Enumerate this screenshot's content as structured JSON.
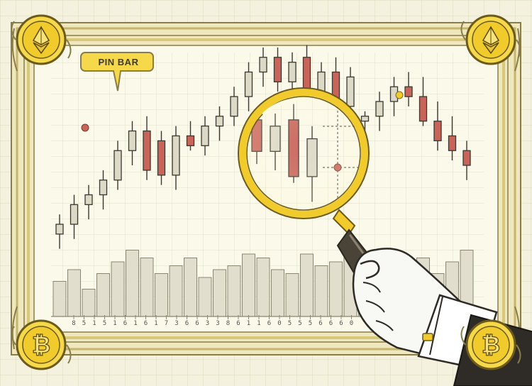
{
  "callout": {
    "label": "PIN BAR"
  },
  "coins": [
    {
      "id": "top-left",
      "symbol": "ethereum"
    },
    {
      "id": "top-right",
      "symbol": "ethereum"
    },
    {
      "id": "bottom-left",
      "symbol": "bitcoin",
      "glyph": "₿"
    },
    {
      "id": "bottom-right",
      "symbol": "bitcoin",
      "glyph": "₿"
    }
  ],
  "colors": {
    "bull": "#dcd9c6",
    "bear": "#c9645a",
    "gold": "#f1cb2c",
    "frame": "#e9e2b8",
    "paper": "#fbf9e9",
    "volume": "#e1dece"
  },
  "chart_data": {
    "type": "candlestick",
    "grid": true,
    "ylim": [
      0,
      100
    ],
    "x_tick_labels": [
      "8",
      "5",
      "1",
      "5",
      "1",
      "6",
      "1",
      "6",
      "1",
      "7",
      "3",
      "6",
      "6",
      "3",
      "3",
      "8",
      "6",
      "1",
      "1",
      "6",
      "0",
      "5",
      "5",
      "5",
      "6",
      "6",
      "6",
      "0"
    ],
    "candles": [
      {
        "o": 22,
        "h": 30,
        "l": 16,
        "c": 26
      },
      {
        "o": 26,
        "h": 38,
        "l": 20,
        "c": 34
      },
      {
        "o": 34,
        "h": 42,
        "l": 28,
        "c": 38
      },
      {
        "o": 38,
        "h": 48,
        "l": 32,
        "c": 44
      },
      {
        "o": 44,
        "h": 60,
        "l": 40,
        "c": 56
      },
      {
        "o": 56,
        "h": 68,
        "l": 50,
        "c": 64
      },
      {
        "o": 64,
        "h": 70,
        "l": 44,
        "c": 48
      },
      {
        "o": 60,
        "h": 64,
        "l": 42,
        "c": 46
      },
      {
        "o": 46,
        "h": 66,
        "l": 40,
        "c": 62
      },
      {
        "o": 62,
        "h": 68,
        "l": 56,
        "c": 58
      },
      {
        "o": 58,
        "h": 70,
        "l": 54,
        "c": 66
      },
      {
        "o": 66,
        "h": 74,
        "l": 60,
        "c": 70
      },
      {
        "o": 70,
        "h": 82,
        "l": 66,
        "c": 78
      },
      {
        "o": 78,
        "h": 92,
        "l": 72,
        "c": 88
      },
      {
        "o": 88,
        "h": 98,
        "l": 82,
        "c": 94
      },
      {
        "o": 94,
        "h": 98,
        "l": 80,
        "c": 84
      },
      {
        "o": 84,
        "h": 96,
        "l": 78,
        "c": 92
      },
      {
        "o": 94,
        "h": 99,
        "l": 74,
        "c": 76
      },
      {
        "o": 76,
        "h": 92,
        "l": 68,
        "c": 88
      },
      {
        "o": 88,
        "h": 94,
        "l": 72,
        "c": 74
      },
      {
        "o": 74,
        "h": 90,
        "l": 66,
        "c": 86
      },
      {
        "o": 68,
        "h": 72,
        "l": 64,
        "c": 70
      },
      {
        "o": 70,
        "h": 80,
        "l": 64,
        "c": 76
      },
      {
        "o": 76,
        "h": 86,
        "l": 70,
        "c": 82
      },
      {
        "o": 82,
        "h": 88,
        "l": 74,
        "c": 78
      },
      {
        "o": 78,
        "h": 86,
        "l": 66,
        "c": 68
      },
      {
        "o": 68,
        "h": 76,
        "l": 56,
        "c": 60
      },
      {
        "o": 62,
        "h": 70,
        "l": 52,
        "c": 56
      },
      {
        "o": 56,
        "h": 60,
        "l": 44,
        "c": 50
      }
    ],
    "volume": [
      18,
      24,
      14,
      22,
      28,
      34,
      30,
      22,
      26,
      30,
      20,
      24,
      26,
      32,
      30,
      24,
      22,
      32,
      26,
      28,
      30,
      22,
      24,
      20,
      26,
      30,
      22,
      28,
      34
    ]
  }
}
